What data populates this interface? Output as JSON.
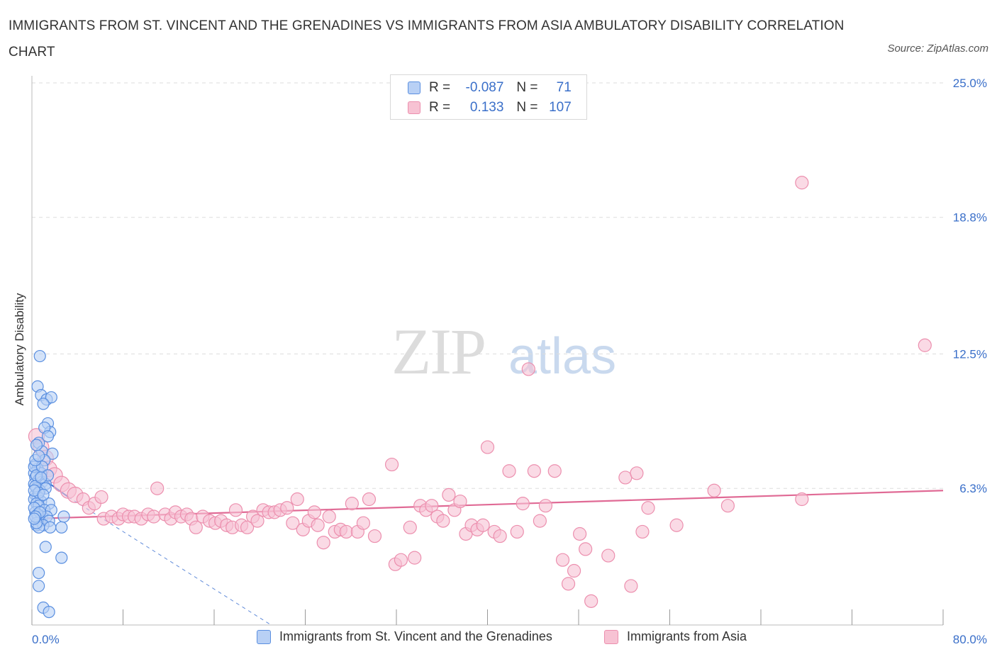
{
  "title": "IMMIGRANTS FROM ST. VINCENT AND THE GRENADINES VS IMMIGRANTS FROM ASIA AMBULATORY DISABILITY CORRELATION CHART",
  "source": "Source: ZipAtlas.com",
  "watermark": {
    "zip": "ZIP",
    "atlas": "atlas"
  },
  "legend": {
    "series1": {
      "r_label": "R =",
      "r_value": "-0.087",
      "n_label": "N =",
      "n_value": "71"
    },
    "series2": {
      "r_label": "R =",
      "r_value": "0.133",
      "n_label": "N =",
      "n_value": "107"
    }
  },
  "colors": {
    "blue_fill": "#b8d0f5",
    "blue_stroke": "#5a8fe0",
    "blue_line": "#3a6fd0",
    "pink_fill": "#f7c2d3",
    "pink_stroke": "#ec8fae",
    "pink_line": "#e06a95",
    "axis_label": "#3a6fc9",
    "grid": "#dddddd"
  },
  "chart_data": {
    "type": "scatter",
    "title": "IMMIGRANTS FROM ST. VINCENT AND THE GRENADINES VS IMMIGRANTS FROM ASIA AMBULATORY DISABILITY CORRELATION CHART",
    "xlabel": "",
    "ylabel": "Ambulatory Disability",
    "xlim": [
      0,
      80
    ],
    "ylim": [
      0,
      25
    ],
    "x_tick_labels": [
      "0.0%",
      "80.0%"
    ],
    "y_ticks": [
      6.3,
      12.5,
      18.8,
      25.0
    ],
    "y_tick_labels": [
      "6.3%",
      "12.5%",
      "18.8%",
      "25.0%"
    ],
    "grid": true,
    "legend_position": "top-center",
    "series": [
      {
        "name": "Immigrants from St. Vincent and the Grenadines",
        "color": "#5a8fe0",
        "R": -0.087,
        "N": 71,
        "trend": {
          "x": [
            0,
            3.2
          ],
          "y": [
            7.1,
            5.9
          ],
          "extended_x": [
            3.2,
            21
          ],
          "extended_y": [
            5.9,
            0
          ]
        },
        "points": [
          [
            0.7,
            12.4
          ],
          [
            0.5,
            11.0
          ],
          [
            0.8,
            10.6
          ],
          [
            1.3,
            10.4
          ],
          [
            1.7,
            10.5
          ],
          [
            1.0,
            10.2
          ],
          [
            1.4,
            9.3
          ],
          [
            1.6,
            8.9
          ],
          [
            1.1,
            9.1
          ],
          [
            1.4,
            8.7
          ],
          [
            0.6,
            8.4
          ],
          [
            0.9,
            8.0
          ],
          [
            1.8,
            7.9
          ],
          [
            0.4,
            8.3
          ],
          [
            1.1,
            7.6
          ],
          [
            0.3,
            7.4
          ],
          [
            0.5,
            7.2
          ],
          [
            0.2,
            7.0
          ],
          [
            0.8,
            7.0
          ],
          [
            0.3,
            6.8
          ],
          [
            0.6,
            6.7
          ],
          [
            0.2,
            6.5
          ],
          [
            0.9,
            6.6
          ],
          [
            1.2,
            6.5
          ],
          [
            0.4,
            6.3
          ],
          [
            0.7,
            6.2
          ],
          [
            1.2,
            6.3
          ],
          [
            0.3,
            6.0
          ],
          [
            0.5,
            5.9
          ],
          [
            0.2,
            5.8
          ],
          [
            0.8,
            5.7
          ],
          [
            1.5,
            5.6
          ],
          [
            0.4,
            5.6
          ],
          [
            0.6,
            5.5
          ],
          [
            1.1,
            5.3
          ],
          [
            1.7,
            5.3
          ],
          [
            0.3,
            5.2
          ],
          [
            0.9,
            5.0
          ],
          [
            1.3,
            5.0
          ],
          [
            2.8,
            5.0
          ],
          [
            0.5,
            4.9
          ],
          [
            0.7,
            4.8
          ],
          [
            1.5,
            4.8
          ],
          [
            0.4,
            4.6
          ],
          [
            1.0,
            4.6
          ],
          [
            1.6,
            4.5
          ],
          [
            2.6,
            4.5
          ],
          [
            0.6,
            4.5
          ],
          [
            1.2,
            3.6
          ],
          [
            2.6,
            3.1
          ],
          [
            0.6,
            2.4
          ],
          [
            0.6,
            1.8
          ],
          [
            1.0,
            0.8
          ],
          [
            1.5,
            0.6
          ],
          [
            0.2,
            7.3
          ],
          [
            0.4,
            6.9
          ],
          [
            0.3,
            6.4
          ],
          [
            0.6,
            6.1
          ],
          [
            0.2,
            5.4
          ],
          [
            0.5,
            5.1
          ],
          [
            0.9,
            7.3
          ],
          [
            0.3,
            7.6
          ],
          [
            1.4,
            6.9
          ],
          [
            0.7,
            5.2
          ],
          [
            0.2,
            6.2
          ],
          [
            0.4,
            4.7
          ],
          [
            0.8,
            6.8
          ],
          [
            0.3,
            5.0
          ],
          [
            1.0,
            6.0
          ],
          [
            0.6,
            7.8
          ],
          [
            0.2,
            4.9
          ]
        ]
      },
      {
        "name": "Immigrants from Asia",
        "color": "#ec8fae",
        "R": 0.133,
        "N": 107,
        "trend": {
          "x": [
            0,
            80
          ],
          "y": [
            4.9,
            6.2
          ]
        },
        "points": [
          [
            0.4,
            8.7
          ],
          [
            0.8,
            8.2
          ],
          [
            1.2,
            7.7
          ],
          [
            1.5,
            7.2
          ],
          [
            2.0,
            6.9
          ],
          [
            2.6,
            6.5
          ],
          [
            3.2,
            6.2
          ],
          [
            3.8,
            6.0
          ],
          [
            4.5,
            5.8
          ],
          [
            5.0,
            5.4
          ],
          [
            5.5,
            5.6
          ],
          [
            6.1,
            5.9
          ],
          [
            6.3,
            4.9
          ],
          [
            7.0,
            5.0
          ],
          [
            7.6,
            4.9
          ],
          [
            8.0,
            5.1
          ],
          [
            8.5,
            5.0
          ],
          [
            9.0,
            5.0
          ],
          [
            9.6,
            4.9
          ],
          [
            10.2,
            5.1
          ],
          [
            10.7,
            5.0
          ],
          [
            11.0,
            6.3
          ],
          [
            11.7,
            5.1
          ],
          [
            12.2,
            4.9
          ],
          [
            12.6,
            5.2
          ],
          [
            13.1,
            5.0
          ],
          [
            13.6,
            5.1
          ],
          [
            14.0,
            4.9
          ],
          [
            14.4,
            4.5
          ],
          [
            15.0,
            5.0
          ],
          [
            15.6,
            4.8
          ],
          [
            16.1,
            4.7
          ],
          [
            16.6,
            4.8
          ],
          [
            17.1,
            4.6
          ],
          [
            17.6,
            4.5
          ],
          [
            17.9,
            5.3
          ],
          [
            18.4,
            4.6
          ],
          [
            18.9,
            4.5
          ],
          [
            19.4,
            5.0
          ],
          [
            19.8,
            4.8
          ],
          [
            20.3,
            5.3
          ],
          [
            20.8,
            5.2
          ],
          [
            21.3,
            5.2
          ],
          [
            21.8,
            5.3
          ],
          [
            22.4,
            5.4
          ],
          [
            22.9,
            4.7
          ],
          [
            23.3,
            5.8
          ],
          [
            23.8,
            4.4
          ],
          [
            24.3,
            4.8
          ],
          [
            24.8,
            5.2
          ],
          [
            25.1,
            4.6
          ],
          [
            25.6,
            3.8
          ],
          [
            26.1,
            5.0
          ],
          [
            26.6,
            4.3
          ],
          [
            27.1,
            4.4
          ],
          [
            27.6,
            4.3
          ],
          [
            28.1,
            5.6
          ],
          [
            28.6,
            4.3
          ],
          [
            29.1,
            4.7
          ],
          [
            29.6,
            5.8
          ],
          [
            30.1,
            4.1
          ],
          [
            31.6,
            7.4
          ],
          [
            31.9,
            2.8
          ],
          [
            32.4,
            3.0
          ],
          [
            33.2,
            4.5
          ],
          [
            33.6,
            3.1
          ],
          [
            34.1,
            5.5
          ],
          [
            34.6,
            5.3
          ],
          [
            35.1,
            5.5
          ],
          [
            35.6,
            5.0
          ],
          [
            36.1,
            4.8
          ],
          [
            36.6,
            6.0
          ],
          [
            37.1,
            5.3
          ],
          [
            37.6,
            5.7
          ],
          [
            38.1,
            4.2
          ],
          [
            38.6,
            4.6
          ],
          [
            39.1,
            4.4
          ],
          [
            39.6,
            4.6
          ],
          [
            40.0,
            8.2
          ],
          [
            40.6,
            4.3
          ],
          [
            41.1,
            4.1
          ],
          [
            41.9,
            7.1
          ],
          [
            42.6,
            4.3
          ],
          [
            43.1,
            5.6
          ],
          [
            43.6,
            11.8
          ],
          [
            44.1,
            7.1
          ],
          [
            44.6,
            4.8
          ],
          [
            45.1,
            5.5
          ],
          [
            45.9,
            7.1
          ],
          [
            46.6,
            3.0
          ],
          [
            47.1,
            1.9
          ],
          [
            47.6,
            2.5
          ],
          [
            48.1,
            4.2
          ],
          [
            48.6,
            3.5
          ],
          [
            49.1,
            1.1
          ],
          [
            50.6,
            3.2
          ],
          [
            52.1,
            6.8
          ],
          [
            52.6,
            1.8
          ],
          [
            53.1,
            7.0
          ],
          [
            53.6,
            4.3
          ],
          [
            54.1,
            5.4
          ],
          [
            56.6,
            4.6
          ],
          [
            59.9,
            6.2
          ],
          [
            67.6,
            5.8
          ],
          [
            67.6,
            20.4
          ],
          [
            78.4,
            12.9
          ],
          [
            61.1,
            5.5
          ]
        ]
      }
    ]
  },
  "bottom_legend": {
    "series1": "Immigrants from St. Vincent and the Grenadines",
    "series2": "Immigrants from Asia"
  }
}
